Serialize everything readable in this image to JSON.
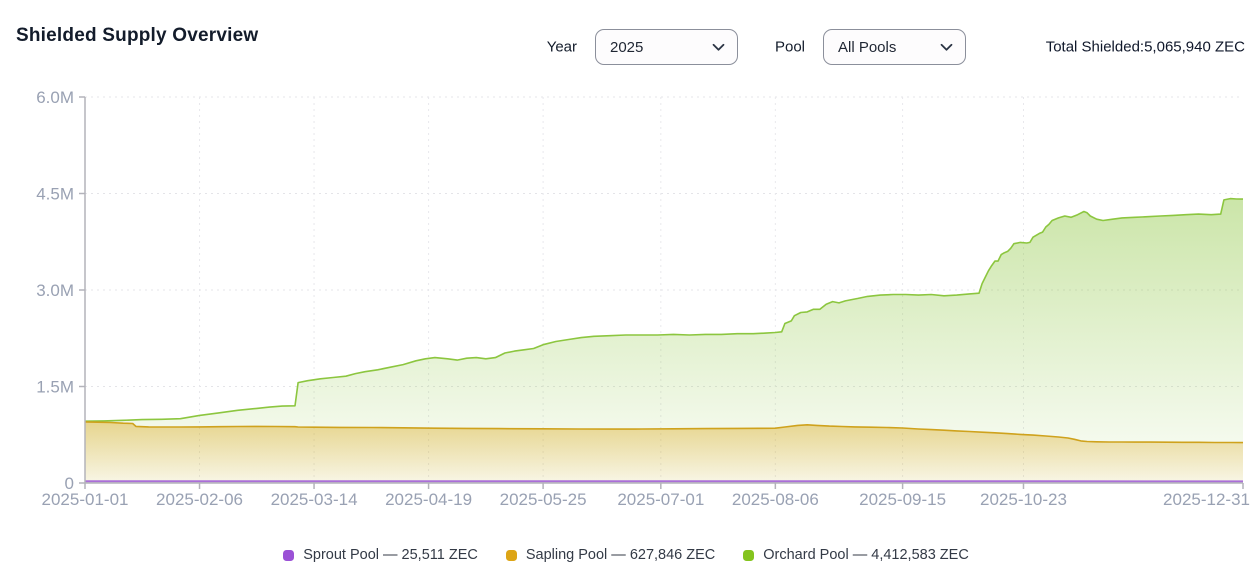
{
  "header": {
    "title": "Shielded Supply Overview",
    "year_label": "Year",
    "year_value": "2025",
    "pool_label": "Pool",
    "pool_value": "All Pools",
    "total_text": "Total Shielded:5,065,940 ZEC"
  },
  "legend": [
    {
      "label": "Sprout Pool — 25,511 ZEC",
      "color": "#9b51d6"
    },
    {
      "label": "Sapling Pool — 627,846 ZEC",
      "color": "#dda516"
    },
    {
      "label": "Orchard Pool — 4,412,583 ZEC",
      "color": "#84c41e"
    }
  ],
  "chart_data": {
    "type": "area",
    "title": "Shielded Supply Overview",
    "xlabel": "",
    "ylabel": "",
    "x_unit": "date",
    "y_unit": "ZEC",
    "x_range_days": [
      0,
      364
    ],
    "ylim": [
      0,
      6000000
    ],
    "grid": "dotted",
    "legend_position": "bottom",
    "y_ticks": [
      {
        "label": "0",
        "value": 0
      },
      {
        "label": "1.5M",
        "value": 1500000
      },
      {
        "label": "3.0M",
        "value": 3000000
      },
      {
        "label": "4.5M",
        "value": 4500000
      },
      {
        "label": "6.0M",
        "value": 6000000
      }
    ],
    "x_ticks": [
      {
        "label": "2025-01-01",
        "day": 0
      },
      {
        "label": "2025-02-06",
        "day": 36
      },
      {
        "label": "2025-03-14",
        "day": 72
      },
      {
        "label": "2025-04-19",
        "day": 108
      },
      {
        "label": "2025-05-25",
        "day": 144
      },
      {
        "label": "2025-07-01",
        "day": 181
      },
      {
        "label": "2025-08-06",
        "day": 217
      },
      {
        "label": "2025-09-15",
        "day": 257
      },
      {
        "label": "2025-10-23",
        "day": 295
      },
      {
        "label": "2025-12-31",
        "day": 364
      }
    ],
    "series": [
      {
        "name": "Orchard Pool",
        "final_value_zec": 4412583,
        "line_color": "#8cc63f",
        "fill_color": "#8cc63f",
        "fill_opacity_top": 0.45,
        "fill_opacity_bottom": 0.03,
        "points": [
          [
            0,
            960000
          ],
          [
            6,
            965000
          ],
          [
            12,
            975000
          ],
          [
            18,
            985000
          ],
          [
            24,
            990000
          ],
          [
            30,
            1000000
          ],
          [
            36,
            1050000
          ],
          [
            42,
            1090000
          ],
          [
            48,
            1130000
          ],
          [
            54,
            1160000
          ],
          [
            58,
            1180000
          ],
          [
            62,
            1195000
          ],
          [
            66,
            1200000
          ],
          [
            67,
            1560000
          ],
          [
            70,
            1590000
          ],
          [
            74,
            1620000
          ],
          [
            78,
            1640000
          ],
          [
            82,
            1660000
          ],
          [
            85,
            1700000
          ],
          [
            88,
            1730000
          ],
          [
            92,
            1760000
          ],
          [
            96,
            1800000
          ],
          [
            100,
            1840000
          ],
          [
            104,
            1900000
          ],
          [
            107,
            1930000
          ],
          [
            110,
            1950000
          ],
          [
            114,
            1930000
          ],
          [
            117,
            1910000
          ],
          [
            120,
            1940000
          ],
          [
            123,
            1950000
          ],
          [
            126,
            1930000
          ],
          [
            129,
            1950000
          ],
          [
            132,
            2020000
          ],
          [
            135,
            2050000
          ],
          [
            138,
            2070000
          ],
          [
            141,
            2090000
          ],
          [
            144,
            2150000
          ],
          [
            148,
            2200000
          ],
          [
            152,
            2230000
          ],
          [
            156,
            2260000
          ],
          [
            160,
            2280000
          ],
          [
            165,
            2290000
          ],
          [
            170,
            2300000
          ],
          [
            180,
            2300000
          ],
          [
            185,
            2310000
          ],
          [
            190,
            2300000
          ],
          [
            195,
            2310000
          ],
          [
            200,
            2310000
          ],
          [
            205,
            2320000
          ],
          [
            210,
            2320000
          ],
          [
            214,
            2330000
          ],
          [
            217,
            2340000
          ],
          [
            219,
            2350000
          ],
          [
            220,
            2480000
          ],
          [
            222,
            2520000
          ],
          [
            223,
            2600000
          ],
          [
            225,
            2650000
          ],
          [
            227,
            2660000
          ],
          [
            229,
            2700000
          ],
          [
            231,
            2700000
          ],
          [
            233,
            2780000
          ],
          [
            235,
            2820000
          ],
          [
            237,
            2800000
          ],
          [
            239,
            2830000
          ],
          [
            241,
            2850000
          ],
          [
            243,
            2870000
          ],
          [
            246,
            2900000
          ],
          [
            250,
            2920000
          ],
          [
            254,
            2930000
          ],
          [
            258,
            2930000
          ],
          [
            262,
            2920000
          ],
          [
            266,
            2930000
          ],
          [
            270,
            2910000
          ],
          [
            274,
            2920000
          ],
          [
            278,
            2940000
          ],
          [
            281,
            2950000
          ],
          [
            282,
            3100000
          ],
          [
            283,
            3200000
          ],
          [
            284,
            3300000
          ],
          [
            285,
            3380000
          ],
          [
            286,
            3450000
          ],
          [
            287,
            3450000
          ],
          [
            288,
            3550000
          ],
          [
            289,
            3580000
          ],
          [
            290,
            3600000
          ],
          [
            291,
            3650000
          ],
          [
            292,
            3720000
          ],
          [
            294,
            3740000
          ],
          [
            296,
            3730000
          ],
          [
            297,
            3740000
          ],
          [
            298,
            3820000
          ],
          [
            300,
            3880000
          ],
          [
            301,
            3900000
          ],
          [
            302,
            3980000
          ],
          [
            303,
            4020000
          ],
          [
            304,
            4080000
          ],
          [
            306,
            4120000
          ],
          [
            308,
            4150000
          ],
          [
            310,
            4130000
          ],
          [
            312,
            4170000
          ],
          [
            314,
            4220000
          ],
          [
            315,
            4200000
          ],
          [
            316,
            4150000
          ],
          [
            318,
            4100000
          ],
          [
            320,
            4080000
          ],
          [
            323,
            4100000
          ],
          [
            326,
            4120000
          ],
          [
            330,
            4130000
          ],
          [
            334,
            4140000
          ],
          [
            338,
            4150000
          ],
          [
            342,
            4160000
          ],
          [
            346,
            4170000
          ],
          [
            350,
            4180000
          ],
          [
            354,
            4170000
          ],
          [
            357,
            4180000
          ],
          [
            358,
            4400000
          ],
          [
            360,
            4420000
          ],
          [
            362,
            4415000
          ],
          [
            364,
            4412583
          ]
        ]
      },
      {
        "name": "Sapling Pool",
        "final_value_zec": 627846,
        "line_color": "#cfa21d",
        "fill_color": "#d9a514",
        "fill_opacity_top": 0.42,
        "fill_opacity_bottom": 0.08,
        "points": [
          [
            0,
            950000
          ],
          [
            4,
            945000
          ],
          [
            8,
            940000
          ],
          [
            12,
            930000
          ],
          [
            15,
            925000
          ],
          [
            16,
            880000
          ],
          [
            20,
            872000
          ],
          [
            25,
            870000
          ],
          [
            30,
            870000
          ],
          [
            36,
            872000
          ],
          [
            42,
            875000
          ],
          [
            48,
            878000
          ],
          [
            54,
            880000
          ],
          [
            60,
            878000
          ],
          [
            66,
            875000
          ],
          [
            67,
            870000
          ],
          [
            72,
            868000
          ],
          [
            80,
            865000
          ],
          [
            90,
            862000
          ],
          [
            100,
            858000
          ],
          [
            110,
            852000
          ],
          [
            120,
            848000
          ],
          [
            130,
            845000
          ],
          [
            144,
            843000
          ],
          [
            155,
            840000
          ],
          [
            165,
            838000
          ],
          [
            175,
            840000
          ],
          [
            185,
            842000
          ],
          [
            195,
            845000
          ],
          [
            205,
            848000
          ],
          [
            212,
            850000
          ],
          [
            217,
            852000
          ],
          [
            220,
            870000
          ],
          [
            224,
            895000
          ],
          [
            227,
            905000
          ],
          [
            230,
            895000
          ],
          [
            234,
            885000
          ],
          [
            238,
            878000
          ],
          [
            242,
            872000
          ],
          [
            247,
            868000
          ],
          [
            252,
            862000
          ],
          [
            257,
            855000
          ],
          [
            262,
            840000
          ],
          [
            266,
            830000
          ],
          [
            270,
            820000
          ],
          [
            274,
            810000
          ],
          [
            278,
            800000
          ],
          [
            282,
            790000
          ],
          [
            286,
            780000
          ],
          [
            290,
            768000
          ],
          [
            294,
            755000
          ],
          [
            298,
            745000
          ],
          [
            302,
            730000
          ],
          [
            306,
            715000
          ],
          [
            309,
            700000
          ],
          [
            311,
            680000
          ],
          [
            313,
            655000
          ],
          [
            315,
            645000
          ],
          [
            318,
            640000
          ],
          [
            322,
            638000
          ],
          [
            326,
            637000
          ],
          [
            330,
            636000
          ],
          [
            335,
            635000
          ],
          [
            340,
            634000
          ],
          [
            345,
            633000
          ],
          [
            350,
            632000
          ],
          [
            355,
            630000
          ],
          [
            360,
            629000
          ],
          [
            364,
            627846
          ]
        ]
      },
      {
        "name": "Sprout Pool",
        "final_value_zec": 25511,
        "line_color": "#aa6fd8",
        "fill_color": "#9b51d6",
        "fill_opacity_top": 0.35,
        "fill_opacity_bottom": 0.2,
        "points": [
          [
            0,
            28000
          ],
          [
            50,
            28000
          ],
          [
            100,
            27000
          ],
          [
            150,
            26500
          ],
          [
            200,
            26000
          ],
          [
            250,
            26000
          ],
          [
            300,
            25800
          ],
          [
            364,
            25511
          ]
        ]
      }
    ]
  }
}
